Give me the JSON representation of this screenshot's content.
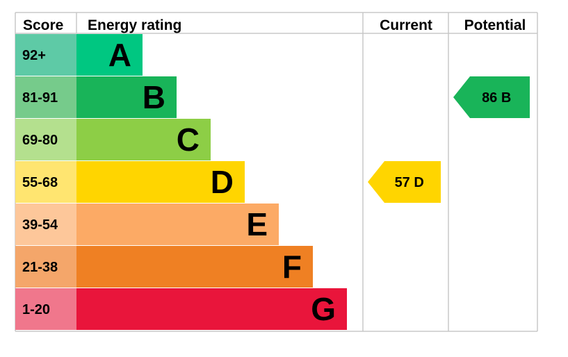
{
  "chart_data": {
    "type": "bar",
    "headers": {
      "score": "Score",
      "rating": "Energy rating",
      "current": "Current",
      "potential": "Potential"
    },
    "bands": [
      {
        "score": "92+",
        "letter": "A",
        "bar_color": "#00c781",
        "score_color": "#5ecaa6"
      },
      {
        "score": "81-91",
        "letter": "B",
        "bar_color": "#19b459",
        "score_color": "#76cb8b"
      },
      {
        "score": "69-80",
        "letter": "C",
        "bar_color": "#8dce46",
        "score_color": "#b4e08e"
      },
      {
        "score": "55-68",
        "letter": "D",
        "bar_color": "#ffd500",
        "score_color": "#ffe570"
      },
      {
        "score": "39-54",
        "letter": "E",
        "bar_color": "#fcaa65",
        "score_color": "#fdc79a"
      },
      {
        "score": "21-38",
        "letter": "F",
        "bar_color": "#ef8023",
        "score_color": "#f4a66a"
      },
      {
        "score": "1-20",
        "letter": "G",
        "bar_color": "#e9153b",
        "score_color": "#f0778c"
      }
    ],
    "current": {
      "value": "57",
      "letter": "D",
      "color": "#ffd500"
    },
    "potential": {
      "value": "86",
      "letter": "B",
      "color": "#19b459"
    }
  }
}
